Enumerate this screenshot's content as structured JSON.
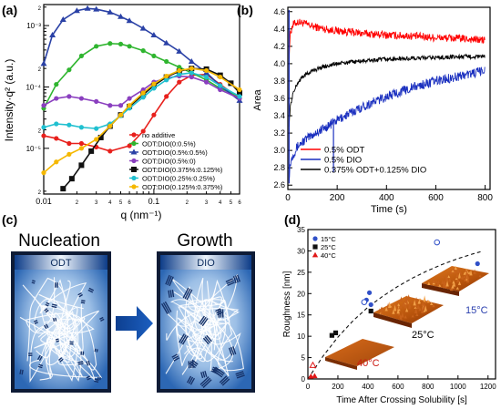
{
  "panel_labels": [
    "(a)",
    "(b)",
    "(c)",
    "(d)"
  ],
  "panel_a": {
    "ylabel": "Intensity·q² (a.u.)",
    "xlabel": "q (nm⁻¹)",
    "x_ticks": [
      "0.01",
      "2",
      "3",
      "4",
      "5",
      "6",
      "7",
      "8",
      "9",
      "0.1",
      "2",
      "3",
      "4",
      "5",
      "6"
    ],
    "y_ticks": [
      "2",
      "10⁻⁵",
      "2",
      "3",
      "4",
      "5",
      "6",
      "7",
      "8",
      "9",
      "10⁻⁴",
      "2",
      "3",
      "4",
      "5",
      "6",
      "7",
      "8",
      "9",
      "10⁻³",
      "2"
    ]
  },
  "panel_b": {
    "ylabel": "Area",
    "xlabel": "Time (s)",
    "x_ticks": [
      "0",
      "200",
      "400",
      "600",
      "800"
    ],
    "y_ticks": [
      "2.6",
      "2.8",
      "3.0",
      "3.2",
      "3.4",
      "3.6",
      "3.8",
      "4.0",
      "4.2",
      "4.4",
      "4.6"
    ]
  },
  "panel_c": {
    "left_title": "Nucleation",
    "right_title": "Growth",
    "left_box_label": "ODT",
    "right_box_label": "DIO"
  },
  "panel_d": {
    "ylabel": "Roughness [nm]",
    "xlabel": "Time After Crossing Solubility [s]",
    "x_ticks": [
      "0",
      "200",
      "400",
      "600",
      "800",
      "1000",
      "1200"
    ],
    "y_ticks": [
      "0",
      "5",
      "10",
      "15",
      "20",
      "25",
      "30",
      "35"
    ],
    "inset_labels": [
      "40°C",
      "25°C",
      "15°C"
    ]
  },
  "colors": {
    "no_additive": "#e8201c",
    "dio_05_05": "#2a41a6",
    "dio_05_0": "#2fb52f",
    "dio_05_0b": "#8a3fbf",
    "dio_0375_0125": "#111111",
    "dio_025_025": "#20c0d0",
    "dio_0125_0375": "#f5b800",
    "panel_b_odt": "#ff0000",
    "panel_b_dio": "#1a2fbf",
    "panel_b_mix": "#000000",
    "d_15": "#3050c8",
    "d_25": "#111111",
    "d_40": "#e01818"
  },
  "chart_data": [
    {
      "type": "line",
      "panel": "(a)",
      "xlabel": "q (nm⁻¹)",
      "ylabel": "Intensity·q² (a.u.)",
      "x_scale": "log",
      "y_scale": "log",
      "xlim": [
        0.01,
        0.6
      ],
      "ylim": [
        1.8e-06,
        0.0022
      ],
      "legend_position": "center-right",
      "series": [
        {
          "name": "no additive",
          "color": "#e8201c",
          "marker": "circle",
          "x": [
            0.01,
            0.013,
            0.017,
            0.022,
            0.03,
            0.04,
            0.06,
            0.08,
            0.1,
            0.13,
            0.17,
            0.22,
            0.3,
            0.4,
            0.6
          ],
          "y": [
            1.6e-05,
            1.45e-05,
            1.2e-05,
            1.2e-05,
            1.05e-05,
            9e-06,
            1.1e-05,
            1.9e-05,
            3.5e-05,
            7e-05,
            0.00012,
            0.000155,
            0.00016,
            0.00011,
            6.5e-05
          ]
        },
        {
          "name": "ODT:DIO(0:0.5%)",
          "color": "#2fb52f",
          "marker": "circle",
          "x": [
            0.01,
            0.013,
            0.017,
            0.022,
            0.03,
            0.04,
            0.05,
            0.06,
            0.08,
            0.1,
            0.13,
            0.17,
            0.22,
            0.3,
            0.4,
            0.6
          ],
          "y": [
            4.5e-05,
            0.00011,
            0.00019,
            0.00032,
            0.00046,
            0.00051,
            0.0005,
            0.00046,
            0.00039,
            0.00032,
            0.00026,
            0.00021,
            0.00017,
            0.00013,
            9.5e-05,
            7e-05
          ]
        },
        {
          "name": "ODT:DIO(0.5%:0.5%)",
          "color": "#2a41a6",
          "marker": "triangle",
          "x": [
            0.01,
            0.012,
            0.015,
            0.02,
            0.025,
            0.03,
            0.04,
            0.05,
            0.06,
            0.08,
            0.1,
            0.13,
            0.17,
            0.22,
            0.3,
            0.4,
            0.6
          ],
          "y": [
            0.00024,
            0.0007,
            0.00125,
            0.00175,
            0.0019,
            0.00185,
            0.00165,
            0.0014,
            0.0012,
            0.0009,
            0.0007,
            0.00052,
            0.00038,
            0.00026,
            0.00017,
            0.000105,
            6e-05
          ]
        },
        {
          "name": "ODT:DIO(0.5%:0)",
          "color": "#8a3fbf",
          "marker": "circle",
          "x": [
            0.01,
            0.013,
            0.017,
            0.022,
            0.03,
            0.04,
            0.05,
            0.06,
            0.08,
            0.1,
            0.13,
            0.17,
            0.22,
            0.3,
            0.4,
            0.6
          ],
          "y": [
            5e-05,
            6.5e-05,
            7e-05,
            6.5e-05,
            5.8e-05,
            5e-05,
            5e-05,
            6.5e-05,
            9e-05,
            0.00012,
            0.00014,
            0.00015,
            0.000145,
            0.00012,
            9e-05,
            6.5e-05
          ]
        },
        {
          "name": "ODT:DIO(0.375%:0.125%)",
          "color": "#111111",
          "marker": "square",
          "x": [
            0.015,
            0.018,
            0.022,
            0.027,
            0.033,
            0.04,
            0.05,
            0.06,
            0.08,
            0.1,
            0.13,
            0.17,
            0.22,
            0.3,
            0.4,
            0.5,
            0.6
          ],
          "y": [
            2.2e-06,
            3.2e-06,
            5.3e-06,
            9e-06,
            1.5e-05,
            2.3e-05,
            3.5e-05,
            4.8e-05,
            7.5e-05,
            0.000105,
            0.000145,
            0.00018,
            0.0002,
            0.000195,
            0.000155,
            0.000115,
            8e-05
          ]
        },
        {
          "name": "ODT:DIO(0.25%:0.25%)",
          "color": "#20c0d0",
          "marker": "circle",
          "x": [
            0.01,
            0.013,
            0.017,
            0.022,
            0.03,
            0.04,
            0.05,
            0.06,
            0.08,
            0.1,
            0.13,
            0.17,
            0.22,
            0.3,
            0.4,
            0.6
          ],
          "y": [
            2.2e-05,
            2.5e-05,
            2.4e-05,
            2.2e-05,
            2.1e-05,
            2.5e-05,
            3.4e-05,
            4.5e-05,
            6.8e-05,
            9.5e-05,
            0.00013,
            0.00016,
            0.00017,
            0.000145,
            0.000105,
            7e-05
          ]
        },
        {
          "name": "ODT:DIO(0.125%:0.375%)",
          "color": "#f5b800",
          "marker": "circle",
          "x": [
            0.01,
            0.013,
            0.017,
            0.022,
            0.03,
            0.04,
            0.05,
            0.06,
            0.08,
            0.1,
            0.13,
            0.17,
            0.22,
            0.3,
            0.4,
            0.6
          ],
          "y": [
            4e-06,
            6e-06,
            8e-06,
            1e-05,
            1.4e-05,
            2.3e-05,
            3.5e-05,
            5e-05,
            8e-05,
            0.000112,
            0.00015,
            0.000185,
            0.0002,
            0.000185,
            0.000145,
            9e-05
          ]
        }
      ]
    },
    {
      "type": "line",
      "panel": "(b)",
      "xlabel": "Time (s)",
      "ylabel": "Area",
      "xlim": [
        0,
        820
      ],
      "ylim": [
        2.55,
        4.65
      ],
      "legend_position": "bottom-right",
      "series": [
        {
          "name": "0.5% ODT",
          "color": "#ff0000",
          "x": [
            5,
            10,
            20,
            40,
            60,
            100,
            150,
            200,
            300,
            400,
            500,
            600,
            700,
            800
          ],
          "y": [
            4.1,
            4.35,
            4.45,
            4.48,
            4.47,
            4.43,
            4.4,
            4.38,
            4.35,
            4.33,
            4.32,
            4.3,
            4.29,
            4.27
          ]
        },
        {
          "name": "0.5% DIO",
          "color": "#1a2fbf",
          "x": [
            5,
            10,
            20,
            40,
            60,
            100,
            150,
            200,
            300,
            400,
            500,
            600,
            700,
            800
          ],
          "y": [
            2.7,
            2.85,
            2.95,
            3.05,
            3.1,
            3.18,
            3.26,
            3.35,
            3.5,
            3.62,
            3.72,
            3.8,
            3.86,
            3.92
          ]
        },
        {
          "name": "0.375% ODT+0.125% DIO",
          "color": "#000000",
          "x": [
            5,
            10,
            20,
            40,
            60,
            100,
            150,
            200,
            300,
            400,
            500,
            600,
            700,
            800
          ],
          "y": [
            3.3,
            3.5,
            3.65,
            3.78,
            3.85,
            3.92,
            3.97,
            4.0,
            4.03,
            4.05,
            4.06,
            4.07,
            4.08,
            4.08
          ]
        }
      ]
    },
    {
      "type": "scatter",
      "panel": "(d)",
      "xlabel": "Time After Crossing Solubility [s]",
      "ylabel": "Roughness [nm]",
      "xlim": [
        0,
        1250
      ],
      "ylim": [
        0,
        35
      ],
      "legend_position": "top-left",
      "series": [
        {
          "name": "15°C",
          "color": "#3050c8",
          "marker": "circle",
          "x": [
            390,
            410,
            420,
            1130
          ],
          "y": [
            18.5,
            20.2,
            17.4,
            27
          ]
        },
        {
          "name": "15°C (open)",
          "color": "#3050c8",
          "marker": "open-circle",
          "x": [
            375,
            860
          ],
          "y": [
            18,
            32
          ]
        },
        {
          "name": "25°C",
          "color": "#111111",
          "marker": "square",
          "x": [
            160,
            185,
            420
          ],
          "y": [
            10.2,
            10.8,
            15.9
          ]
        },
        {
          "name": "40°C",
          "color": "#e01818",
          "marker": "triangle",
          "x": [
            20,
            45
          ],
          "y": [
            0.6,
            0.7
          ]
        },
        {
          "name": "40°C (open)",
          "color": "#e01818",
          "marker": "open-triangle",
          "x": [
            33
          ],
          "y": [
            3.2
          ]
        }
      ],
      "fit_curve": {
        "style": "dashed",
        "x": [
          0,
          100,
          200,
          300,
          400,
          500,
          600,
          700,
          800,
          900,
          1000,
          1100,
          1150
        ],
        "y": [
          0,
          5.3,
          9.8,
          13.6,
          16.8,
          19.4,
          21.7,
          23.7,
          25.4,
          26.9,
          28.2,
          29.3,
          29.8
        ]
      }
    }
  ]
}
